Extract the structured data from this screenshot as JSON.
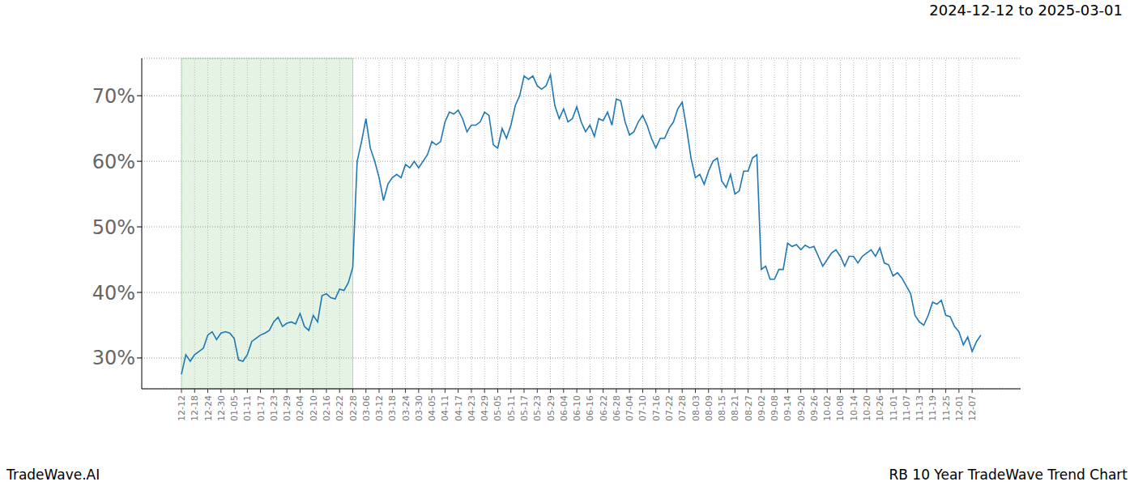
{
  "chart_data": {
    "type": "line",
    "title": "2024-12-12 to 2025-03-01",
    "annotations": [
      "TradeWave.AI",
      "RB 10 Year TradeWave Trend Chart"
    ],
    "highlight_range": [
      "12-12",
      "02-28"
    ],
    "categories": [
      "12-12",
      null,
      null,
      "12-18",
      null,
      null,
      "12-24",
      null,
      null,
      "12-30",
      null,
      null,
      "01-05",
      null,
      null,
      "01-11",
      null,
      null,
      "01-17",
      null,
      null,
      "01-23",
      null,
      null,
      "01-29",
      null,
      null,
      "02-04",
      null,
      null,
      "02-10",
      null,
      null,
      "02-16",
      null,
      null,
      "02-22",
      null,
      null,
      "02-28",
      null,
      null,
      "03-06",
      null,
      null,
      "03-12",
      null,
      null,
      "03-18",
      null,
      null,
      "03-24",
      null,
      null,
      "03-30",
      null,
      null,
      "04-05",
      null,
      null,
      "04-11",
      null,
      null,
      "04-17",
      null,
      null,
      "04-23",
      null,
      null,
      "04-29",
      null,
      null,
      "05-05",
      null,
      null,
      "05-11",
      null,
      null,
      "05-17",
      null,
      null,
      "05-23",
      null,
      null,
      "05-29",
      null,
      null,
      "06-04",
      null,
      null,
      "06-10",
      null,
      null,
      "06-16",
      null,
      null,
      "06-22",
      null,
      null,
      "06-28",
      null,
      null,
      "07-04",
      null,
      null,
      "07-10",
      null,
      null,
      "07-16",
      null,
      null,
      "07-22",
      null,
      null,
      "07-28",
      null,
      null,
      "08-03",
      null,
      null,
      "08-09",
      null,
      null,
      "08-15",
      null,
      null,
      "08-21",
      null,
      null,
      "08-27",
      null,
      null,
      "09-02",
      null,
      null,
      "09-08",
      null,
      null,
      "09-14",
      null,
      null,
      "09-20",
      null,
      null,
      "09-26",
      null,
      null,
      "10-02",
      null,
      null,
      "10-08",
      null,
      null,
      "10-14",
      null,
      null,
      "10-20",
      null,
      null,
      "10-26",
      null,
      null,
      "11-01",
      null,
      null,
      "11-07",
      null,
      null,
      "11-13",
      null,
      null,
      "11-19",
      null,
      null,
      "11-25",
      null,
      null,
      "12-01",
      null,
      null,
      "12-07",
      null,
      null
    ],
    "values": [
      27.5,
      30.5,
      29.5,
      30.5,
      31,
      31.5,
      33.5,
      34,
      32.8,
      33.8,
      34,
      33.8,
      33,
      29.7,
      29.5,
      30.5,
      32.5,
      33,
      33.5,
      33.8,
      34.2,
      35.5,
      36.2,
      34.8,
      35.3,
      35.5,
      35.2,
      36.8,
      34.8,
      34.2,
      36.5,
      35.5,
      39.5,
      39.8,
      39.2,
      39,
      40.5,
      40.3,
      41.5,
      43.8,
      60,
      63,
      66.5,
      62,
      60,
      57.5,
      54,
      56.5,
      57.5,
      58,
      57.5,
      59.5,
      59,
      60,
      59,
      60,
      61,
      63,
      62.5,
      63,
      66,
      67.5,
      67.2,
      67.8,
      66.5,
      64.5,
      65.5,
      65.5,
      66,
      67.5,
      67,
      62.5,
      62,
      65,
      63.5,
      65.5,
      68.5,
      70,
      73,
      72.5,
      73,
      71.5,
      71,
      71.5,
      73.2,
      68.5,
      66.5,
      68,
      66,
      66.5,
      68.3,
      66,
      64.5,
      65.5,
      63.8,
      66.5,
      66.2,
      67.5,
      65.5,
      69.5,
      69.2,
      66,
      64,
      64.5,
      66,
      67,
      65.5,
      63.5,
      62,
      63.5,
      63.5,
      65,
      66,
      68,
      69,
      65,
      60.5,
      57.5,
      58,
      56.5,
      58.5,
      60,
      60.5,
      57,
      56,
      58,
      55,
      55.5,
      58.5,
      58.5,
      60.5,
      61,
      43.5,
      44,
      42,
      42,
      43.5,
      43.5,
      47.5,
      47,
      47.3,
      46.5,
      47.2,
      46.8,
      47,
      45.5,
      44,
      45,
      46,
      46.5,
      45.5,
      44,
      45.5,
      45.5,
      44.5,
      45.5,
      46,
      46.5,
      45.5,
      46.8,
      44.5,
      44.2,
      42.5,
      43,
      42.2,
      41,
      39.8,
      36.5,
      35.5,
      35,
      36.5,
      38.5,
      38.2,
      38.8,
      36.5,
      36.3,
      34.8,
      34,
      32,
      33.2,
      31,
      32.5,
      33.5
    ],
    "color": "#1f77b4",
    "ylim": [
      25.3,
      75.7
    ],
    "yticks": [
      {
        "value": 30,
        "label": "30%"
      },
      {
        "value": 40,
        "label": "40%"
      },
      {
        "value": 50,
        "label": "50%"
      },
      {
        "value": 60,
        "label": "60%"
      },
      {
        "value": 70,
        "label": "70%"
      }
    ],
    "grid": true
  }
}
